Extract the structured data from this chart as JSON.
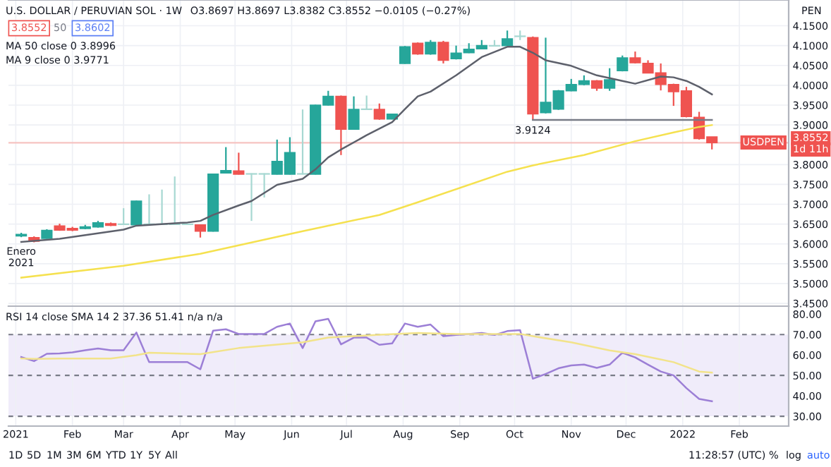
{
  "chart_data": [
    {
      "type": "candlestick",
      "title": "U.S. DOLLAR / PERUVIAN SOL · 1W",
      "x": [
        "2021-01-04",
        "2021-01-11",
        "2021-01-18",
        "2021-01-25",
        "2021-02-01",
        "2021-02-08",
        "2021-02-15",
        "2021-02-22",
        "2021-03-01",
        "2021-03-08",
        "2021-03-15",
        "2021-03-22",
        "2021-03-29",
        "2021-04-05",
        "2021-04-12",
        "2021-04-19",
        "2021-04-26",
        "2021-05-03",
        "2021-05-10",
        "2021-05-17",
        "2021-05-24",
        "2021-05-31",
        "2021-06-07",
        "2021-06-14",
        "2021-06-21",
        "2021-06-28",
        "2021-07-05",
        "2021-07-12",
        "2021-07-19",
        "2021-07-26",
        "2021-08-02",
        "2021-08-09",
        "2021-08-16",
        "2021-08-23",
        "2021-08-30",
        "2021-09-06",
        "2021-09-13",
        "2021-09-20",
        "2021-09-27",
        "2021-10-04",
        "2021-10-11",
        "2021-10-18",
        "2021-10-25",
        "2021-11-01",
        "2021-11-08",
        "2021-11-15",
        "2021-11-22",
        "2021-11-29",
        "2021-12-06",
        "2021-12-13",
        "2021-12-20",
        "2021-12-27",
        "2022-01-03",
        "2022-01-10",
        "2022-01-17"
      ],
      "ohlc": [
        [
          3.62,
          3.628,
          3.617,
          3.624
        ],
        [
          3.616,
          3.619,
          3.604,
          3.607
        ],
        [
          3.614,
          3.637,
          3.613,
          3.634
        ],
        [
          3.645,
          3.651,
          3.633,
          3.635
        ],
        [
          3.639,
          3.643,
          3.632,
          3.635
        ],
        [
          3.639,
          3.648,
          3.637,
          3.643
        ],
        [
          3.643,
          3.658,
          3.641,
          3.653
        ],
        [
          3.651,
          3.654,
          3.645,
          3.647
        ],
        [
          3.65,
          3.69,
          3.649,
          3.649
        ],
        [
          3.648,
          3.709,
          3.647,
          3.708
        ],
        [
          3.65,
          3.725,
          3.648,
          3.649
        ],
        [
          3.65,
          3.737,
          3.648,
          3.649
        ],
        [
          3.65,
          3.77,
          3.648,
          3.649
        ],
        [
          3.65,
          3.651,
          3.648,
          3.649
        ],
        [
          3.648,
          3.649,
          3.616,
          3.632
        ],
        [
          3.632,
          3.777,
          3.631,
          3.776
        ],
        [
          3.779,
          3.844,
          3.778,
          3.785
        ],
        [
          3.784,
          3.83,
          3.775,
          3.776
        ],
        [
          3.777,
          3.778,
          3.658,
          3.776
        ],
        [
          3.777,
          3.778,
          3.717,
          3.776
        ],
        [
          3.776,
          3.863,
          3.775,
          3.808
        ],
        [
          3.776,
          3.869,
          3.775,
          3.83
        ],
        [
          3.777,
          3.939,
          3.775,
          3.776
        ],
        [
          3.776,
          3.951,
          3.775,
          3.95
        ],
        [
          3.95,
          3.986,
          3.949,
          3.972
        ],
        [
          3.972,
          3.974,
          3.824,
          3.889
        ],
        [
          3.889,
          3.972,
          3.888,
          3.939
        ],
        [
          3.939,
          3.974,
          3.938,
          3.94
        ],
        [
          3.939,
          3.954,
          3.913,
          3.915
        ],
        [
          3.915,
          3.928,
          3.914,
          3.927
        ],
        [
          4.055,
          4.099,
          4.054,
          4.097
        ],
        [
          4.106,
          4.108,
          4.077,
          4.079
        ],
        [
          4.079,
          4.114,
          4.077,
          4.108
        ],
        [
          4.108,
          4.112,
          4.055,
          4.063
        ],
        [
          4.067,
          4.1,
          4.065,
          4.081
        ],
        [
          4.082,
          4.106,
          4.081,
          4.091
        ],
        [
          4.092,
          4.114,
          4.091,
          4.1
        ],
        [
          4.1,
          4.114,
          4.098,
          4.099
        ],
        [
          4.1,
          4.138,
          4.099,
          4.117
        ],
        [
          4.124,
          4.138,
          4.114,
          4.123
        ],
        [
          4.12,
          4.123,
          3.9124,
          3.928
        ],
        [
          3.931,
          4.12,
          3.929,
          3.957
        ],
        [
          3.94,
          3.988,
          3.938,
          3.986
        ],
        [
          3.986,
          4.016,
          3.985,
          4.002
        ],
        [
          4.002,
          4.025,
          4.0,
          4.011
        ],
        [
          4.011,
          4.013,
          3.986,
          3.993
        ],
        [
          3.993,
          4.043,
          3.986,
          4.014
        ],
        [
          4.037,
          4.075,
          4.035,
          4.069
        ],
        [
          4.069,
          4.085,
          4.055,
          4.057
        ],
        [
          4.055,
          4.063,
          4.03,
          4.031
        ],
        [
          4.031,
          4.055,
          3.987,
          4.002
        ],
        [
          4.002,
          4.004,
          3.948,
          3.984
        ],
        [
          3.986,
          3.996,
          3.919,
          3.921
        ],
        [
          3.919,
          3.933,
          3.863,
          3.8657
        ],
        [
          3.8697,
          3.8697,
          3.8382,
          3.8552
        ]
      ],
      "colors": [
        "#26a69a",
        "#ef5350",
        "#26a69a",
        "#ef5350",
        "#ef5350",
        "#26a69a",
        "#26a69a",
        "#ef5350",
        "#a7d8d2",
        "#26a69a",
        "#a7d8d2",
        "#a7d8d2",
        "#a7d8d2",
        "#a7d8d2",
        "#ef5350",
        "#26a69a",
        "#26a69a",
        "#ef5350",
        "#a7d8d2",
        "#a7d8d2",
        "#26a69a",
        "#26a69a",
        "#a7d8d2",
        "#26a69a",
        "#26a69a",
        "#ef5350",
        "#26a69a",
        "#a7d8d2",
        "#ef5350",
        "#26a69a",
        "#26a69a",
        "#ef5350",
        "#26a69a",
        "#ef5350",
        "#26a69a",
        "#26a69a",
        "#26a69a",
        "#a7d8d2",
        "#26a69a",
        "#a7d8d2",
        "#ef5350",
        "#26a69a",
        "#26a69a",
        "#26a69a",
        "#26a69a",
        "#ef5350",
        "#26a69a",
        "#26a69a",
        "#ef5350",
        "#ef5350",
        "#ef5350",
        "#ef5350",
        "#ef5350",
        "#ef5350",
        "#ef5350"
      ],
      "series": [
        {
          "type": "line",
          "color": "#5d606b",
          "x": [
            "2021-01-04",
            "2021-01-25",
            "2021-03-01",
            "2021-03-08",
            "2021-04-05",
            "2021-04-12",
            "2021-04-19",
            "2021-05-03",
            "2021-05-10",
            "2021-05-24",
            "2021-06-07",
            "2021-06-14",
            "2021-06-21",
            "2021-06-28",
            "2021-07-12",
            "2021-07-26",
            "2021-08-02",
            "2021-08-09",
            "2021-08-16",
            "2021-08-30",
            "2021-09-13",
            "2021-09-27",
            "2021-10-04",
            "2021-10-11",
            "2021-10-18",
            "2021-11-01",
            "2021-11-15",
            "2021-11-29",
            "2021-12-06",
            "2021-12-20",
            "2021-12-27",
            "2022-01-03",
            "2022-01-10",
            "2022-01-17"
          ],
          "values": [
            3.605,
            3.613,
            3.636,
            3.646,
            3.654,
            3.658,
            3.673,
            3.697,
            3.708,
            3.749,
            3.764,
            3.788,
            3.818,
            3.838,
            3.874,
            3.907,
            3.94,
            3.972,
            3.984,
            4.025,
            4.071,
            4.097,
            4.097,
            4.082,
            4.063,
            4.049,
            4.025,
            4.011,
            4.004,
            4.022,
            4.02,
            4.011,
            3.996,
            3.9771
          ]
        },
        {
          "type": "line",
          "color": "#f5e14f",
          "x": [
            "2021-01-04",
            "2021-03-01",
            "2021-04-12",
            "2021-06-07",
            "2021-07-19",
            "2021-08-09",
            "2021-09-27",
            "2021-10-11",
            "2021-11-08",
            "2021-12-06",
            "2021-12-27",
            "2022-01-10",
            "2022-01-17"
          ],
          "values": [
            3.515,
            3.545,
            3.575,
            3.632,
            3.673,
            3.705,
            3.782,
            3.798,
            3.824,
            3.859,
            3.881,
            3.895,
            3.8996
          ]
        },
        {
          "type": "line",
          "color": "#787b86",
          "x": [
            "2021-10-11",
            "2022-01-17"
          ],
          "values": [
            3.9124,
            3.9124
          ]
        }
      ],
      "xlim": [
        "2020-12-28",
        "2022-02-28"
      ],
      "xticks": [
        {
          "value": "2021-01-01",
          "label": null
        },
        {
          "value": "2021-02-01",
          "label": null
        },
        {
          "value": "2021-03-01",
          "label": null
        },
        {
          "value": "2021-04-01",
          "label": null
        },
        {
          "value": "2021-05-01",
          "label": null
        },
        {
          "value": "2021-06-01",
          "label": null
        },
        {
          "value": "2021-07-01",
          "label": null
        },
        {
          "value": "2021-08-01",
          "label": null
        },
        {
          "value": "2021-09-01",
          "label": null
        },
        {
          "value": "2021-10-01",
          "label": null
        },
        {
          "value": "2021-11-01",
          "label": null
        },
        {
          "value": "2021-12-01",
          "label": null
        },
        {
          "value": "2022-01-01",
          "label": null
        },
        {
          "value": "2022-02-01",
          "label": null
        }
      ],
      "ylim": [
        3.443,
        4.215
      ],
      "yticks": [
        {
          "value": 3.45,
          "label": "3.4500"
        },
        {
          "value": 3.5,
          "label": "3.5000"
        },
        {
          "value": 3.55,
          "label": "3.5500"
        },
        {
          "value": 3.6,
          "label": "3.6000"
        },
        {
          "value": 3.65,
          "label": "3.6500"
        },
        {
          "value": 3.7,
          "label": "3.7000"
        },
        {
          "value": 3.75,
          "label": "3.7500"
        },
        {
          "value": 3.8,
          "label": "3.8000"
        },
        {
          "value": 3.9,
          "label": "3.9000"
        },
        {
          "value": 3.95,
          "label": "3.9500"
        },
        {
          "value": 4.0,
          "label": "4.0000"
        },
        {
          "value": 4.05,
          "label": "4.0500"
        },
        {
          "value": 4.1,
          "label": "4.1000"
        },
        {
          "value": 4.15,
          "label": "4.1500"
        }
      ],
      "tick_labels": "y",
      "grid": true,
      "ref_lines": [
        {
          "axis": "y",
          "value": 3.8552,
          "color": "#f6c3c2"
        }
      ],
      "annotations": [
        "O3.8697 H3.8697 L3.8382 C3.8552 −0.0105 (−0.27%)",
        "3.8552",
        "50",
        "3.8602",
        "MA 50 close 0 3.8996",
        "MA 9 close 0 3.9771",
        "USDPEN",
        "3.8552",
        "1d 11h",
        "PEN",
        {
          "text": "Enero\n2021",
          "x": "2021-01-04",
          "y": 3.607
        },
        {
          "text": "3.9124",
          "x": "2021-10-11",
          "y": 3.9124
        }
      ]
    },
    {
      "type": "line",
      "x": [
        "2021-01-04",
        "2021-01-11",
        "2021-01-18",
        "2021-01-25",
        "2021-02-01",
        "2021-02-08",
        "2021-02-15",
        "2021-02-22",
        "2021-03-01",
        "2021-03-08",
        "2021-03-15",
        "2021-03-22",
        "2021-03-29",
        "2021-04-05",
        "2021-04-12",
        "2021-04-19",
        "2021-04-26",
        "2021-05-03",
        "2021-05-10",
        "2021-05-17",
        "2021-05-24",
        "2021-05-31",
        "2021-06-07",
        "2021-06-14",
        "2021-06-21",
        "2021-06-28",
        "2021-07-05",
        "2021-07-12",
        "2021-07-19",
        "2021-07-26",
        "2021-08-02",
        "2021-08-09",
        "2021-08-16",
        "2021-08-23",
        "2021-08-30",
        "2021-09-06",
        "2021-09-13",
        "2021-09-20",
        "2021-09-27",
        "2021-10-04",
        "2021-10-11",
        "2021-10-18",
        "2021-10-25",
        "2021-11-01",
        "2021-11-08",
        "2021-11-15",
        "2021-11-22",
        "2021-11-29",
        "2021-12-06",
        "2021-12-13",
        "2021-12-20",
        "2021-12-27",
        "2022-01-03",
        "2022-01-10",
        "2022-01-17"
      ],
      "series": [
        {
          "color": "#9c7fd6",
          "values": [
            59.0,
            57.0,
            60.6,
            60.8,
            61.3,
            62.3,
            63.2,
            62.3,
            62.3,
            71.0,
            56.5,
            56.5,
            56.5,
            56.5,
            53.0,
            71.9,
            72.6,
            70.3,
            70.3,
            70.3,
            73.8,
            75.4,
            63.4,
            76.5,
            77.7,
            65.2,
            68.5,
            68.5,
            65.0,
            65.7,
            75.4,
            73.8,
            74.9,
            69.2,
            69.8,
            70.3,
            70.8,
            69.8,
            71.7,
            72.2,
            48.4,
            50.7,
            53.5,
            54.9,
            55.3,
            53.7,
            55.3,
            61.1,
            58.8,
            55.3,
            51.9,
            50.0,
            43.8,
            38.5,
            37.36
          ]
        },
        {
          "color": "#f2e38a",
          "x": [
            "2021-01-04",
            "2021-01-11",
            "2021-01-25",
            "2021-02-22",
            "2021-03-08",
            "2021-03-15",
            "2021-04-12",
            "2021-05-03",
            "2021-06-07",
            "2021-06-21",
            "2021-07-19",
            "2021-08-09",
            "2021-08-30",
            "2021-10-04",
            "2021-10-11",
            "2021-11-01",
            "2021-11-22",
            "2021-12-06",
            "2021-12-27",
            "2022-01-10",
            "2022-01-17"
          ],
          "values": [
            58.3,
            58.1,
            58.3,
            58.3,
            59.9,
            61.1,
            60.4,
            63.4,
            66.2,
            68.5,
            69.9,
            70.8,
            70.3,
            70.3,
            69.2,
            66.2,
            62.2,
            60.4,
            56.5,
            51.9,
            51.41
          ]
        }
      ],
      "xlim": [
        "2020-12-28",
        "2022-02-28"
      ],
      "xticks": [
        {
          "value": "2021-01-01",
          "label": "2021"
        },
        {
          "value": "2021-02-01",
          "label": "Feb"
        },
        {
          "value": "2021-03-01",
          "label": "Mar"
        },
        {
          "value": "2021-04-01",
          "label": "Apr"
        },
        {
          "value": "2021-05-01",
          "label": "May"
        },
        {
          "value": "2021-06-01",
          "label": "Jun"
        },
        {
          "value": "2021-07-01",
          "label": "Jul"
        },
        {
          "value": "2021-08-01",
          "label": "Aug"
        },
        {
          "value": "2021-09-01",
          "label": "Sep"
        },
        {
          "value": "2021-10-01",
          "label": "Oct"
        },
        {
          "value": "2021-11-01",
          "label": "Nov"
        },
        {
          "value": "2021-12-01",
          "label": "Dec"
        },
        {
          "value": "2022-01-01",
          "label": "2022"
        },
        {
          "value": "2022-02-01",
          "label": "Feb"
        }
      ],
      "ylim": [
        25.2,
        83.9
      ],
      "yticks": [
        {
          "value": 30,
          "label": "30.00"
        },
        {
          "value": 40,
          "label": "40.00"
        },
        {
          "value": 50,
          "label": "50.00"
        },
        {
          "value": 60,
          "label": "60.00"
        },
        {
          "value": 70,
          "label": "70.00"
        },
        {
          "value": 80,
          "label": "80.00"
        }
      ],
      "grid": "x",
      "line_style": "solid",
      "bands": [
        {
          "axis": "y",
          "from": 30,
          "to": 70,
          "color": "#f0ecfa"
        }
      ],
      "ref_lines": [
        {
          "axis": "y",
          "value": 30,
          "color": "#787b86",
          "line_style": "dashed"
        },
        {
          "axis": "y",
          "value": 50,
          "color": "#787b86",
          "line_style": "dashed"
        },
        {
          "axis": "y",
          "value": 70,
          "color": "#787b86",
          "line_style": "dashed"
        }
      ],
      "annotations": [
        "RSI 14 close SMA 14 2 37.36 51.41 n/a n/a",
        "1D",
        "5D",
        "1M",
        "3M",
        "6M",
        "YTD",
        "1Y",
        "5Y",
        "All",
        "11:28:57 (UTC)",
        "%",
        "log",
        "auto"
      ]
    }
  ]
}
